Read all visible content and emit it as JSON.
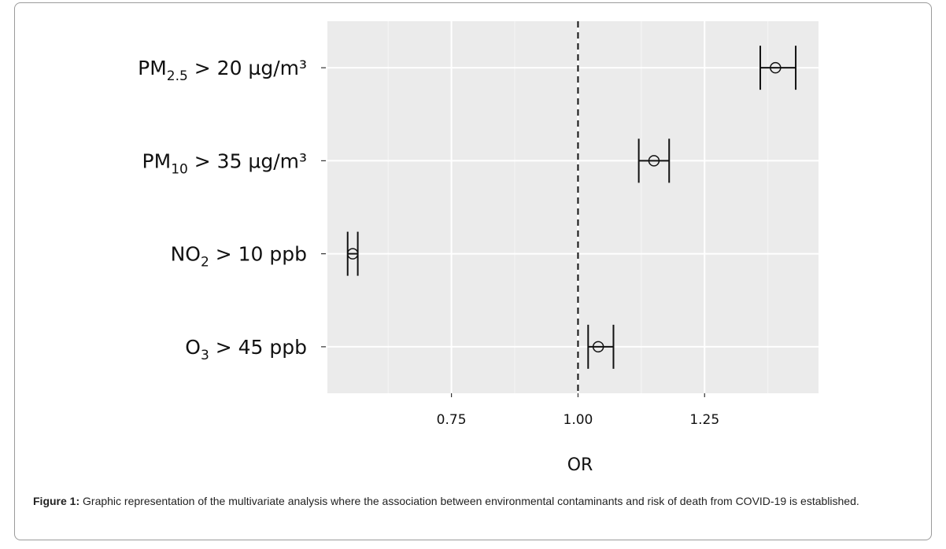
{
  "chart_data": {
    "type": "forest",
    "xlabel": "OR",
    "ylabel": "",
    "xlim": [
      0.505,
      1.475
    ],
    "xticks": [
      {
        "value": 0.75,
        "label": "0.75"
      },
      {
        "value": 1.0,
        "label": "1.00"
      },
      {
        "value": 1.25,
        "label": "1.25"
      }
    ],
    "reference_line": 1.0,
    "grid": true,
    "items": [
      {
        "label": {
          "base": "PM",
          "sub": "2.5",
          "rest": " > 20 µg/m³"
        },
        "or": 1.39,
        "lower": 1.36,
        "upper": 1.43
      },
      {
        "label": {
          "base": "PM",
          "sub": "10",
          "rest": " > 35 µg/m³"
        },
        "or": 1.15,
        "lower": 1.12,
        "upper": 1.18
      },
      {
        "label": {
          "base": "NO",
          "sub": "2",
          "rest": " > 10 ppb"
        },
        "or": 0.555,
        "lower": 0.545,
        "upper": 0.565
      },
      {
        "label": {
          "base": "O",
          "sub": "3",
          "rest": " > 45 ppb"
        },
        "or": 1.04,
        "lower": 1.02,
        "upper": 1.07
      }
    ]
  },
  "caption": {
    "prefix": "Figure 1:",
    "text": " Graphic representation of the multivariate analysis where the association between environmental contaminants and risk of death from COVID-19 is established."
  }
}
